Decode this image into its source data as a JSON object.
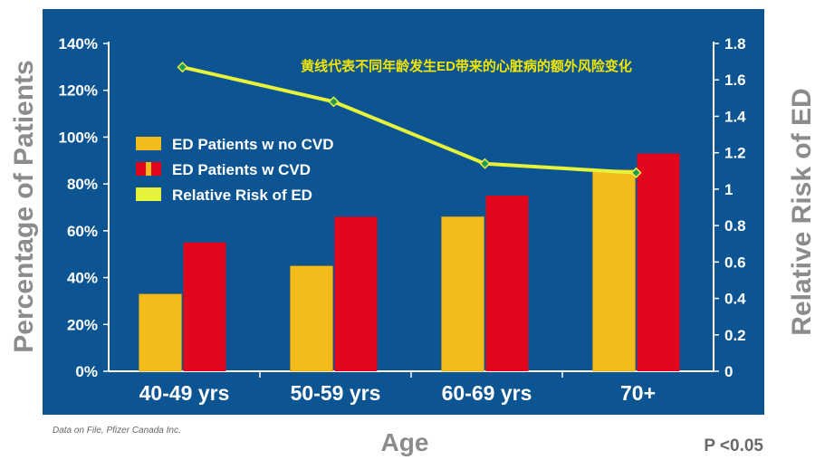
{
  "chart_data": {
    "type": "bar",
    "categories": [
      "40-49 yrs",
      "50-59 yrs",
      "60-69 yrs",
      "70+"
    ],
    "series": [
      {
        "name": "ED Patients w no CVD",
        "values": [
          33,
          45,
          66,
          86
        ]
      },
      {
        "name": "ED Patients w CVD",
        "values": [
          55,
          66,
          75,
          93
        ]
      }
    ],
    "line_series": {
      "name": "Relative Risk of ED",
      "values": [
        1.67,
        1.48,
        1.14,
        1.09
      ]
    },
    "xlabel": "Age",
    "ylabel": "Percentage of Patients",
    "y2label": "Relative Risk of ED",
    "ylim": [
      0,
      140
    ],
    "y2lim": [
      0,
      1.8
    ],
    "y_ticks": [
      "0%",
      "20%",
      "40%",
      "60%",
      "80%",
      "100%",
      "120%",
      "140%"
    ],
    "y2_ticks": [
      "0",
      "0.2",
      "0.4",
      "0.6",
      "0.8",
      "1",
      "1.2",
      "1.4",
      "1.6",
      "1.8"
    ],
    "annotation": "黄线代表不同年龄发生ED带来的心脏病的额外风险变化",
    "source_note": "Data on File, Pfizer Canada Inc.",
    "p_value": "P <0.05",
    "legend_position": "upper-left",
    "grid": false,
    "colors": {
      "background": "#0c5592",
      "no_cvd": "#f3bb1b",
      "cvd": "#e2061c",
      "line": "#e7f23a",
      "marker": "#1c9a5a",
      "axis": "#ffffff"
    }
  }
}
